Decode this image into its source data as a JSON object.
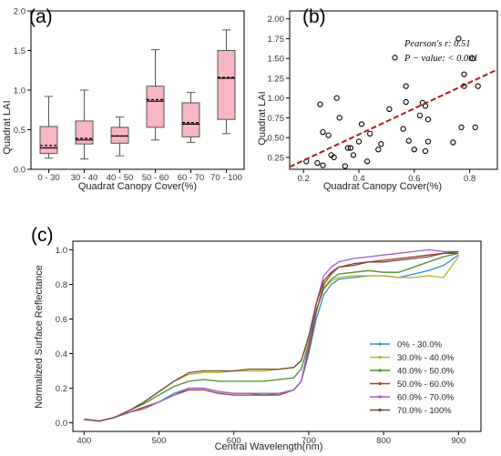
{
  "chart_data": [
    {
      "panel_label": "(a)",
      "type": "box",
      "xlabel": "Quadrat Canopy Cover(%)",
      "ylabel": "Quadrat LAI",
      "ylim": [
        0,
        2.0
      ],
      "yticks": [
        "0.0",
        "0.5",
        "1.0",
        "1.5",
        "2.0"
      ],
      "fill_color": "#f7b6c2",
      "categories": [
        "0 - 30",
        "30 - 40",
        "40 - 50",
        "50 - 60",
        "60 - 70",
        "70 - 100"
      ],
      "boxes": [
        {
          "min": 0.14,
          "q1": 0.2,
          "median": 0.27,
          "mean": 0.3,
          "q3": 0.54,
          "max": 0.92
        },
        {
          "min": 0.13,
          "q1": 0.32,
          "median": 0.37,
          "mean": 0.39,
          "q3": 0.61,
          "max": 1.0
        },
        {
          "min": 0.17,
          "q1": 0.33,
          "median": 0.42,
          "mean": 0.42,
          "q3": 0.53,
          "max": 0.66
        },
        {
          "min": 0.37,
          "q1": 0.53,
          "median": 0.86,
          "mean": 0.88,
          "q3": 1.05,
          "max": 1.51
        },
        {
          "min": 0.34,
          "q1": 0.41,
          "median": 0.57,
          "mean": 0.59,
          "q3": 0.84,
          "max": 0.97
        },
        {
          "min": 0.45,
          "q1": 0.63,
          "median": 1.15,
          "mean": 1.16,
          "q3": 1.5,
          "max": 1.76
        }
      ]
    },
    {
      "panel_label": "(b)",
      "type": "scatter",
      "xlabel": "Quadrat Canopy Cover(%)",
      "ylabel": "Quadrat LAI",
      "xlim": [
        0.15,
        0.9
      ],
      "ylim": [
        0.1,
        2.1
      ],
      "xticks": [
        "0.2",
        "0.4",
        "0.6",
        "0.8"
      ],
      "yticks": [
        "0.25",
        "0.50",
        "0.75",
        "1.00",
        "1.25",
        "1.50",
        "1.75",
        "2.00"
      ],
      "annotation_line1": "Pearson's r: 0.51",
      "annotation_line2": "P − value: < 0.001",
      "fit_line": {
        "x": [
          0.15,
          0.9
        ],
        "y": [
          0.13,
          1.36
        ],
        "color": "#b01818"
      },
      "points": [
        [
          0.21,
          0.2
        ],
        [
          0.25,
          0.18
        ],
        [
          0.26,
          0.92
        ],
        [
          0.27,
          0.15
        ],
        [
          0.27,
          0.57
        ],
        [
          0.29,
          0.53
        ],
        [
          0.3,
          0.28
        ],
        [
          0.31,
          0.25
        ],
        [
          0.32,
          1.0
        ],
        [
          0.33,
          0.75
        ],
        [
          0.35,
          0.14
        ],
        [
          0.36,
          0.37
        ],
        [
          0.37,
          0.37
        ],
        [
          0.38,
          0.28
        ],
        [
          0.4,
          0.45
        ],
        [
          0.41,
          0.67
        ],
        [
          0.43,
          0.2
        ],
        [
          0.44,
          0.55
        ],
        [
          0.47,
          0.35
        ],
        [
          0.48,
          0.42
        ],
        [
          0.51,
          0.86
        ],
        [
          0.53,
          1.51
        ],
        [
          0.56,
          0.61
        ],
        [
          0.57,
          1.15
        ],
        [
          0.57,
          0.95
        ],
        [
          0.58,
          0.46
        ],
        [
          0.6,
          0.35
        ],
        [
          0.62,
          0.78
        ],
        [
          0.63,
          0.94
        ],
        [
          0.64,
          0.33
        ],
        [
          0.64,
          0.9
        ],
        [
          0.65,
          0.45
        ],
        [
          0.65,
          0.73
        ],
        [
          0.74,
          0.44
        ],
        [
          0.76,
          1.75
        ],
        [
          0.77,
          0.63
        ],
        [
          0.78,
          1.3
        ],
        [
          0.78,
          1.15
        ],
        [
          0.81,
          1.5
        ],
        [
          0.82,
          0.63
        ],
        [
          0.83,
          1.15
        ]
      ]
    },
    {
      "panel_label": "(c)",
      "type": "line",
      "xlabel": "Central Wavelength(nm)",
      "ylabel": "Normalized Surface Reflectance",
      "xlim": [
        385,
        930
      ],
      "ylim": [
        -0.05,
        1.05
      ],
      "xticks": [
        "400",
        "500",
        "600",
        "700",
        "800",
        "900"
      ],
      "yticks": [
        "0.0",
        "0.2",
        "0.4",
        "0.6",
        "0.8",
        "1.0"
      ],
      "x": [
        400,
        420,
        440,
        460,
        480,
        500,
        520,
        540,
        560,
        580,
        600,
        620,
        640,
        660,
        680,
        690,
        700,
        710,
        720,
        730,
        740,
        760,
        780,
        800,
        820,
        840,
        860,
        880,
        900
      ],
      "series": [
        {
          "name": "0% - 30.0%",
          "color": "#2b8fc7",
          "values": [
            0.02,
            0.01,
            0.03,
            0.06,
            0.09,
            0.12,
            0.17,
            0.2,
            0.2,
            0.18,
            0.17,
            0.17,
            0.16,
            0.17,
            0.19,
            0.24,
            0.4,
            0.6,
            0.74,
            0.8,
            0.83,
            0.84,
            0.85,
            0.85,
            0.84,
            0.86,
            0.88,
            0.91,
            0.97
          ]
        },
        {
          "name": "30.0% - 40.0%",
          "color": "#b5b520",
          "values": [
            0.02,
            0.01,
            0.03,
            0.07,
            0.12,
            0.18,
            0.24,
            0.28,
            0.29,
            0.29,
            0.3,
            0.3,
            0.3,
            0.31,
            0.32,
            0.36,
            0.48,
            0.65,
            0.77,
            0.82,
            0.84,
            0.85,
            0.85,
            0.85,
            0.84,
            0.84,
            0.85,
            0.84,
            0.96
          ]
        },
        {
          "name": "40.0% - 50.0%",
          "color": "#4e8b2e",
          "values": [
            0.02,
            0.01,
            0.03,
            0.07,
            0.11,
            0.16,
            0.21,
            0.24,
            0.25,
            0.24,
            0.24,
            0.24,
            0.24,
            0.25,
            0.26,
            0.31,
            0.46,
            0.65,
            0.78,
            0.83,
            0.86,
            0.87,
            0.88,
            0.87,
            0.87,
            0.9,
            0.93,
            0.96,
            0.98
          ]
        },
        {
          "name": "50.0% - 60.0%",
          "color": "#a04028",
          "values": [
            0.02,
            0.01,
            0.03,
            0.06,
            0.09,
            0.12,
            0.16,
            0.19,
            0.19,
            0.17,
            0.16,
            0.16,
            0.16,
            0.16,
            0.19,
            0.24,
            0.42,
            0.64,
            0.8,
            0.86,
            0.9,
            0.92,
            0.93,
            0.94,
            0.95,
            0.96,
            0.97,
            0.98,
            0.98
          ]
        },
        {
          "name": "60.0% - 70.0%",
          "color": "#9a5fc9",
          "values": [
            0.02,
            0.01,
            0.03,
            0.06,
            0.08,
            0.12,
            0.16,
            0.2,
            0.2,
            0.18,
            0.17,
            0.17,
            0.17,
            0.17,
            0.19,
            0.24,
            0.45,
            0.69,
            0.85,
            0.9,
            0.93,
            0.95,
            0.96,
            0.97,
            0.98,
            0.99,
            1.0,
            0.99,
            0.99
          ]
        },
        {
          "name": "70.0% - 100%",
          "color": "#6e4a35",
          "values": [
            0.02,
            0.01,
            0.03,
            0.07,
            0.12,
            0.18,
            0.24,
            0.29,
            0.3,
            0.3,
            0.3,
            0.31,
            0.31,
            0.31,
            0.32,
            0.36,
            0.5,
            0.69,
            0.82,
            0.87,
            0.9,
            0.91,
            0.93,
            0.93,
            0.94,
            0.95,
            0.96,
            0.98,
            0.99
          ]
        }
      ]
    }
  ]
}
